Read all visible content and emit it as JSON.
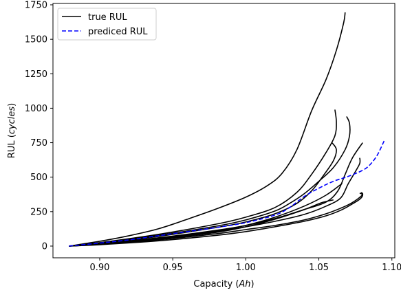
{
  "chart_data": {
    "type": "line",
    "xlabel": "Capacity",
    "xlabel_unit": "Ah",
    "ylabel": "RUL",
    "ylabel_unit": "cycles",
    "xlim": [
      0.868,
      1.102
    ],
    "ylim": [
      -85,
      1760
    ],
    "xticks": [
      0.9,
      0.95,
      1.0,
      1.05,
      1.1
    ],
    "xtick_labels": [
      "0.90",
      "0.95",
      "1.00",
      "1.05",
      "1.10"
    ],
    "yticks": [
      0,
      250,
      500,
      750,
      1000,
      1250,
      1500,
      1750
    ],
    "ytick_labels": [
      "0",
      "250",
      "500",
      "750",
      "1000",
      "1250",
      "1500",
      "1750"
    ],
    "grid": false,
    "legend_position": "top-left",
    "legend": [
      {
        "label": "true RUL",
        "color": "#000000",
        "style": "solid"
      },
      {
        "label": "prediced RUL",
        "color": "#0000ff",
        "style": "dashed"
      }
    ],
    "series": [
      {
        "name": "true RUL",
        "color": "#000000",
        "style": "solid",
        "x": [
          0.879,
          0.9,
          0.92,
          0.94,
          0.96,
          0.98,
          1.0,
          1.015,
          1.025,
          1.035,
          1.045,
          1.055,
          1.062,
          1.067,
          1.068
        ],
        "y": [
          0,
          35,
          75,
          125,
          195,
          270,
          355,
          440,
          530,
          700,
          980,
          1210,
          1420,
          1620,
          1695
        ]
      },
      {
        "name": "true RUL",
        "color": "#000000",
        "style": "solid",
        "x": [
          0.879,
          0.9,
          0.94,
          0.98,
          1.0,
          1.02,
          1.035,
          1.045,
          1.055,
          1.061,
          1.062,
          1.061
        ],
        "y": [
          0,
          25,
          85,
          160,
          210,
          280,
          390,
          520,
          680,
          800,
          900,
          990
        ]
      },
      {
        "name": "true RUL",
        "color": "#000000",
        "style": "solid",
        "x": [
          0.879,
          0.9,
          0.94,
          0.98,
          1.0,
          1.02,
          1.03,
          1.04,
          1.05,
          1.06,
          1.068,
          1.071,
          1.071,
          1.069
        ],
        "y": [
          0,
          22,
          78,
          145,
          190,
          255,
          310,
          380,
          470,
          570,
          700,
          800,
          890,
          940
        ]
      },
      {
        "name": "true RUL",
        "color": "#000000",
        "style": "solid",
        "x": [
          0.879,
          0.9,
          0.94,
          0.98,
          1.0,
          1.02,
          1.035,
          1.045,
          1.053,
          1.06,
          1.062,
          1.059
        ],
        "y": [
          0,
          20,
          70,
          135,
          175,
          235,
          310,
          400,
          510,
          620,
          700,
          750
        ]
      },
      {
        "name": "true RUL",
        "color": "#000000",
        "style": "solid",
        "x": [
          0.879,
          0.9,
          0.94,
          0.98,
          1.0,
          1.02,
          1.04,
          1.055,
          1.063,
          1.068,
          1.073,
          1.08
        ],
        "y": [
          0,
          18,
          60,
          115,
          150,
          200,
          265,
          320,
          400,
          520,
          640,
          750
        ]
      },
      {
        "name": "true RUL",
        "color": "#000000",
        "style": "solid",
        "x": [
          0.879,
          0.9,
          0.94,
          0.98,
          1.0,
          1.02,
          1.04,
          1.055,
          1.066
        ],
        "y": [
          0,
          16,
          55,
          110,
          150,
          210,
          290,
          370,
          455
        ]
      },
      {
        "name": "true RUL",
        "color": "#000000",
        "style": "solid",
        "x": [
          0.879,
          0.9,
          0.94,
          0.98,
          1.0,
          1.02,
          1.04,
          1.055,
          1.065,
          1.07,
          1.075,
          1.078,
          1.078
        ],
        "y": [
          0,
          15,
          52,
          105,
          140,
          180,
          230,
          290,
          350,
          450,
          540,
          600,
          640
        ]
      },
      {
        "name": "true RUL",
        "color": "#000000",
        "style": "solid",
        "x": [
          0.879,
          0.9,
          0.94,
          0.98,
          1.0,
          1.02,
          1.04,
          1.055,
          1.065,
          1.072,
          1.077,
          1.08,
          1.079
        ],
        "y": [
          0,
          12,
          45,
          90,
          120,
          150,
          190,
          235,
          275,
          310,
          345,
          375,
          390
        ]
      },
      {
        "name": "true RUL",
        "color": "#000000",
        "style": "solid",
        "x": [
          0.879,
          0.9,
          0.94,
          0.98,
          1.0,
          1.02,
          1.04,
          1.055,
          1.065,
          1.072,
          1.078,
          1.08,
          1.078
        ],
        "y": [
          0,
          10,
          38,
          78,
          105,
          140,
          180,
          220,
          260,
          300,
          340,
          370,
          385
        ]
      },
      {
        "name": "true RUL",
        "color": "#000000",
        "style": "solid",
        "x": [
          0.879,
          0.9,
          0.94,
          0.98,
          1.0,
          1.02,
          1.04,
          1.052,
          1.06
        ],
        "y": [
          0,
          14,
          50,
          100,
          140,
          195,
          265,
          315,
          335
        ]
      },
      {
        "name": "prediced RUL",
        "color": "#0000ff",
        "style": "dashed",
        "x": [
          0.879,
          0.9,
          0.92,
          0.94,
          0.96,
          0.98,
          1.0,
          1.02,
          1.03,
          1.04,
          1.05,
          1.06,
          1.07,
          1.08,
          1.085,
          1.09,
          1.095
        ],
        "y": [
          0,
          22,
          45,
          75,
          105,
          135,
          170,
          225,
          280,
          360,
          420,
          470,
          505,
          550,
          590,
          660,
          770
        ]
      }
    ]
  }
}
